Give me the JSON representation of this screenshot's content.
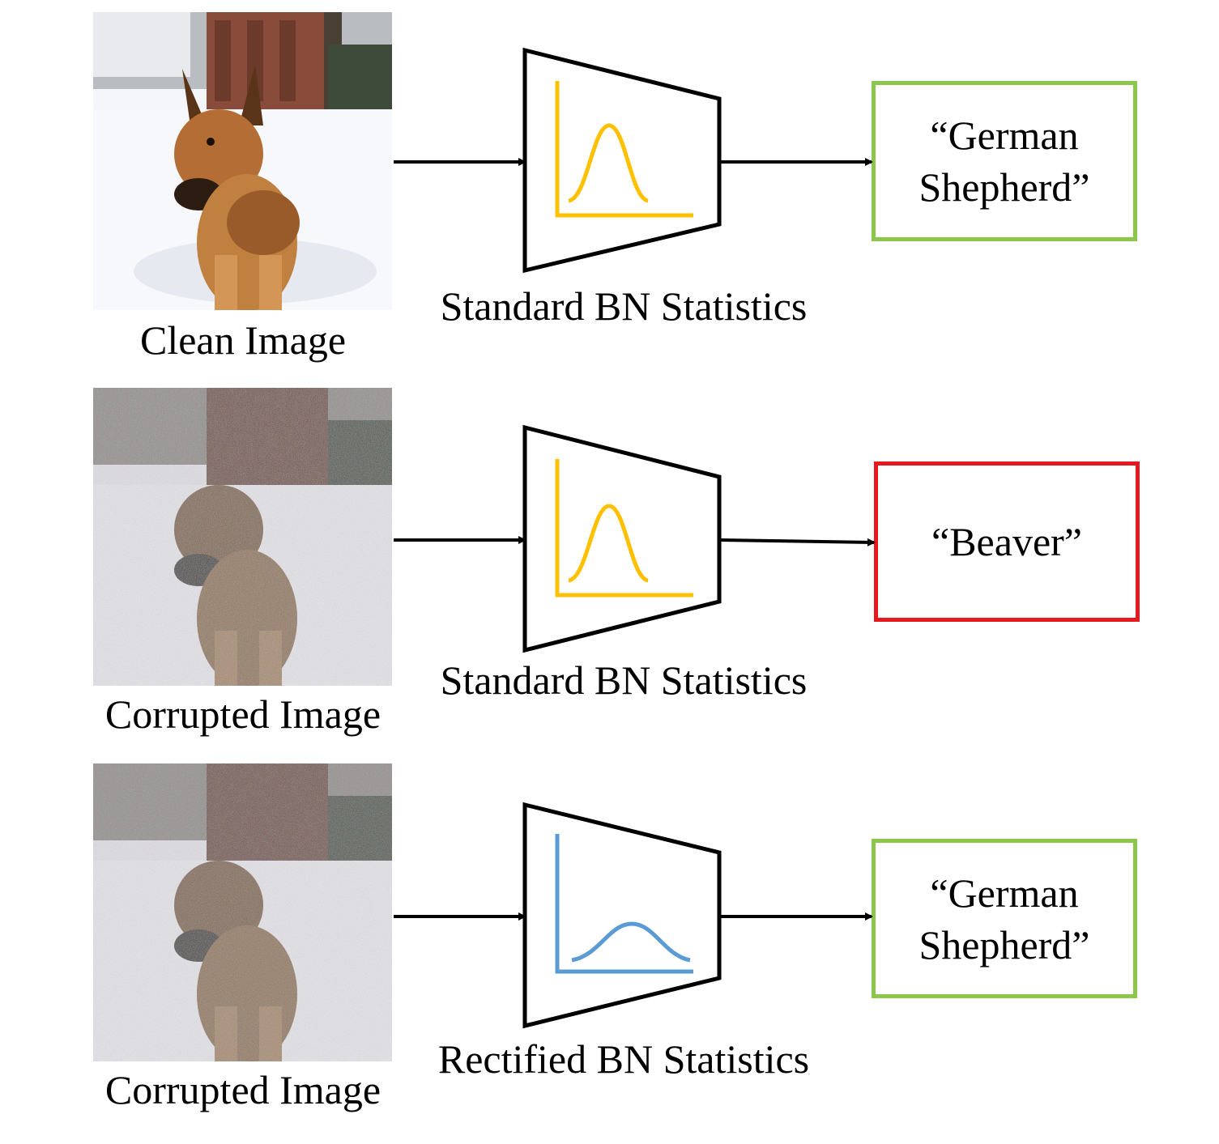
{
  "colors": {
    "correct": "#8cc64a",
    "incorrect": "#e8191e",
    "standard_curve": "#ffc000",
    "rectified_curve": "#5b9bd5",
    "outline": "#000000"
  },
  "rows": [
    {
      "image_label": "Clean Image",
      "image_kind": "clean",
      "bn_label": "Standard BN Statistics",
      "bn_type": "standard",
      "prediction": "“German\nShepherd”",
      "prediction_status": "correct"
    },
    {
      "image_label": "Corrupted Image",
      "image_kind": "corrupted",
      "bn_label": "Standard BN Statistics",
      "bn_type": "standard",
      "prediction": "“Beaver”",
      "prediction_status": "incorrect"
    },
    {
      "image_label": "Corrupted Image",
      "image_kind": "corrupted",
      "bn_label": "Rectified BN Statistics",
      "bn_type": "rectified",
      "prediction": "“German\nShepherd”",
      "prediction_status": "correct"
    }
  ]
}
